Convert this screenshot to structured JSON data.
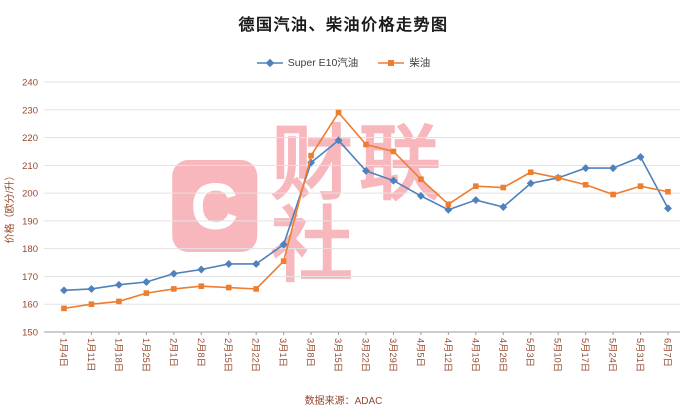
{
  "title": "德国汽油、柴油价格走势图",
  "footer": {
    "source": "数据来源：ADAC"
  },
  "watermark": {
    "logo_letter": "C",
    "brand": "财联社"
  },
  "colors": {
    "series1": "#4f81bd",
    "series2": "#ed7d31",
    "axis_text": "#96492e",
    "grid": "#e3e3e3",
    "axis_line": "#9b9b9b",
    "title_text": "#1a1a1a",
    "watermark_red": "#e60012"
  },
  "chart_data": {
    "type": "line",
    "title": "德国汽油、柴油价格走势图",
    "ylabel": "价格（欧分/升）",
    "xlabel": "",
    "ylim": [
      150,
      240
    ],
    "ytick_step": 10,
    "grid": true,
    "legend_position": "top",
    "source_note": "数据来源：ADAC",
    "categories": [
      "1月4日",
      "1月11日",
      "1月18日",
      "1月25日",
      "2月1日",
      "2月8日",
      "2月15日",
      "2月22日",
      "3月1日",
      "3月8日",
      "3月15日",
      "3月22日",
      "3月29日",
      "4月5日",
      "4月12日",
      "4月19日",
      "4月26日",
      "5月3日",
      "5月10日",
      "5月17日",
      "5月24日",
      "5月31日",
      "6月7日"
    ],
    "series": [
      {
        "name": "Super E10汽油",
        "marker": "diamond",
        "color": "#4f81bd",
        "values": [
          165,
          165.5,
          167,
          168,
          171,
          172.5,
          174.5,
          174.5,
          181.5,
          211,
          219,
          208,
          204.5,
          199,
          194,
          197.5,
          195,
          203.5,
          205.5,
          209,
          209,
          213,
          194.5
        ]
      },
      {
        "name": "柴油",
        "marker": "square",
        "color": "#ed7d31",
        "values": [
          158.5,
          160,
          161,
          164,
          165.5,
          166.5,
          166,
          165.5,
          175.5,
          213.5,
          229,
          217.5,
          215,
          205,
          196,
          202.5,
          202,
          207.5,
          205.5,
          203,
          199.5,
          202.5,
          200.5
        ]
      }
    ]
  }
}
